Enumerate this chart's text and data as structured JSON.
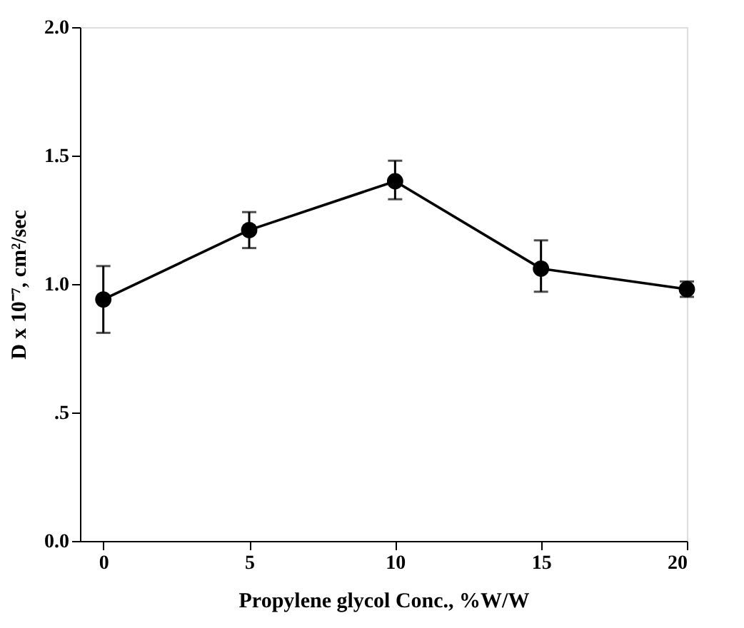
{
  "chart_data": {
    "type": "line",
    "xlabel": "Propylene glycol Conc., %W/W",
    "ylabel": "D x 10⁻⁷, cm²/sec",
    "x": [
      0,
      5,
      10,
      15,
      20
    ],
    "series": [
      {
        "color": "#000000",
        "values": [
          0.94,
          1.21,
          1.4,
          1.06,
          0.98
        ],
        "errors": [
          [
            0.81,
            1.07
          ],
          [
            1.14,
            1.28
          ],
          [
            1.33,
            1.48
          ],
          [
            0.97,
            1.17
          ],
          [
            0.95,
            1.01
          ]
        ]
      }
    ],
    "marker": "circle",
    "line_style": "solid",
    "grid": false,
    "xlim": [
      -0.8,
      20
    ],
    "xticks": [
      0,
      5,
      10,
      15,
      20
    ],
    "ylim": [
      0,
      2.0
    ],
    "yticks": [
      {
        "value": 0,
        "label": "0.0"
      },
      {
        "value": 0.5,
        "label": ".5"
      },
      {
        "value": 1.0,
        "label": "1.0"
      },
      {
        "value": 1.5,
        "label": "1.5"
      },
      {
        "value": 2.0,
        "label": "2.0"
      }
    ]
  }
}
